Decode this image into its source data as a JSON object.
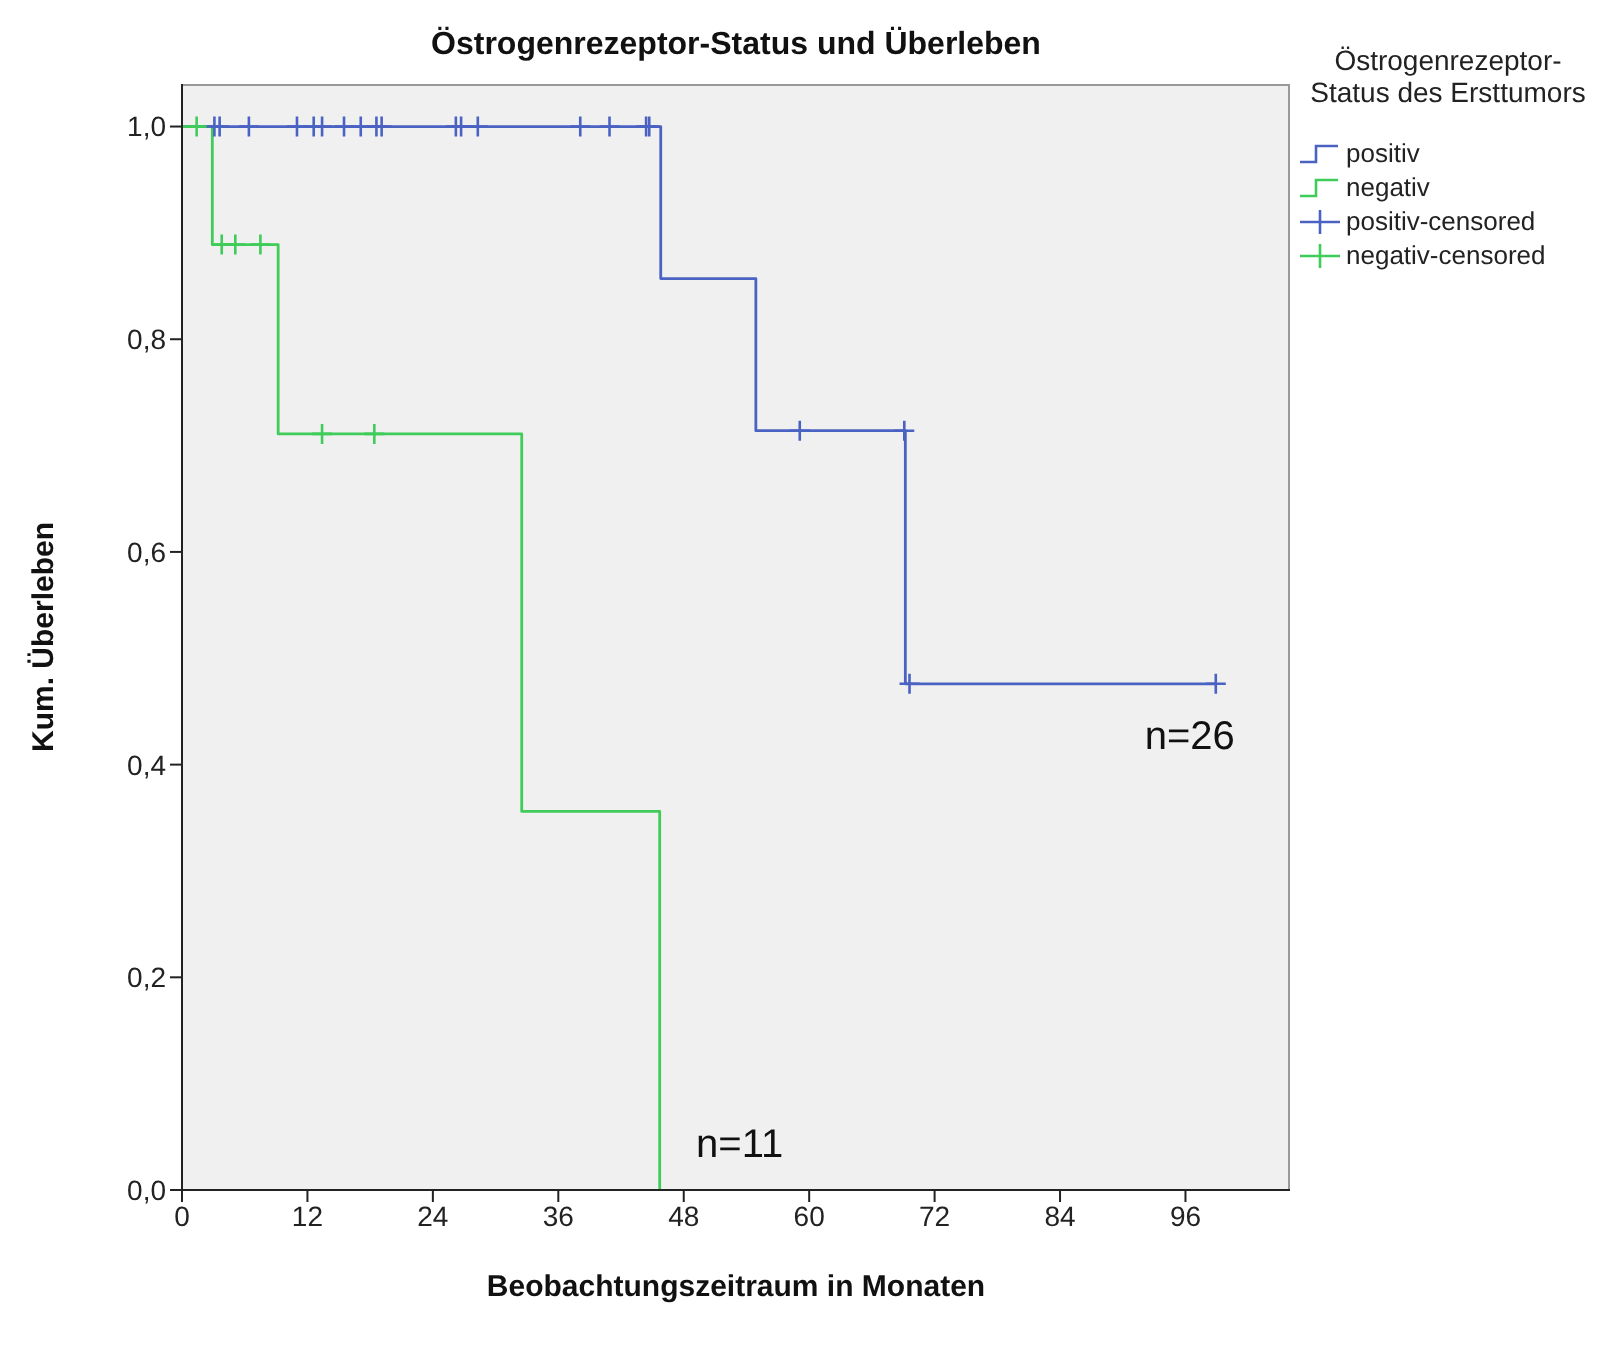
{
  "chart_data": {
    "type": "step",
    "title": "Östrogenrezeptor-Status und Überleben",
    "xlabel": "Beobachtungszeitraum in Monaten",
    "ylabel": "Kum. Überleben",
    "legend_title": "Östrogenrezeptor-Status des Ersttumors",
    "legend": "right",
    "grid": false,
    "line_style": "solid",
    "xlim": [
      0,
      106
    ],
    "xticks": [
      0,
      12,
      24,
      36,
      48,
      60,
      72,
      84,
      96
    ],
    "ylim": [
      0,
      1.04
    ],
    "yticks": [
      {
        "value": 0,
        "label": "0,0"
      },
      {
        "value": 0.2,
        "label": "0,2"
      },
      {
        "value": 0.4,
        "label": "0,4"
      },
      {
        "value": 0.6,
        "label": "0,6"
      },
      {
        "value": 0.8,
        "label": "0,8"
      },
      {
        "value": 1,
        "label": "1,0"
      }
    ],
    "series": [
      {
        "name": "positiv",
        "color": "#4a63c2",
        "x": [
          0,
          45.8,
          54.9,
          69.2,
          98.9
        ],
        "values": [
          1,
          0.857,
          0.714,
          0.476,
          0.476
        ]
      },
      {
        "name": "negativ",
        "color": "#3fcc5a",
        "x": [
          0,
          2.9,
          9.2,
          32.5,
          45.7
        ],
        "values": [
          1,
          0.889,
          0.711,
          0.356,
          0
        ]
      },
      {
        "name": "positiv-censored",
        "type": "scatter",
        "marker": "cross",
        "color": "#4a63c2",
        "x": [
          3.1,
          3.6,
          6.4,
          11.0,
          12.6,
          13.4,
          15.5,
          17.1,
          18.6,
          19.1,
          26.2,
          26.7,
          28.3,
          38.1,
          40.9,
          44.4,
          44.7,
          59.1,
          69.1,
          69.6,
          98.9
        ],
        "values": [
          1,
          1,
          1,
          1,
          1,
          1,
          1,
          1,
          1,
          1,
          1,
          1,
          1,
          1,
          1,
          1,
          1,
          0.714,
          0.714,
          0.476,
          0.476
        ]
      },
      {
        "name": "negativ-censored",
        "type": "scatter",
        "marker": "cross",
        "color": "#3fcc5a",
        "x": [
          1.4,
          3.8,
          5.1,
          7.5,
          13.4,
          18.4
        ],
        "values": [
          1,
          0.889,
          0.889,
          0.889,
          0.711,
          0.711
        ]
      }
    ],
    "annotations": [
      "n=26",
      "n=11"
    ]
  }
}
